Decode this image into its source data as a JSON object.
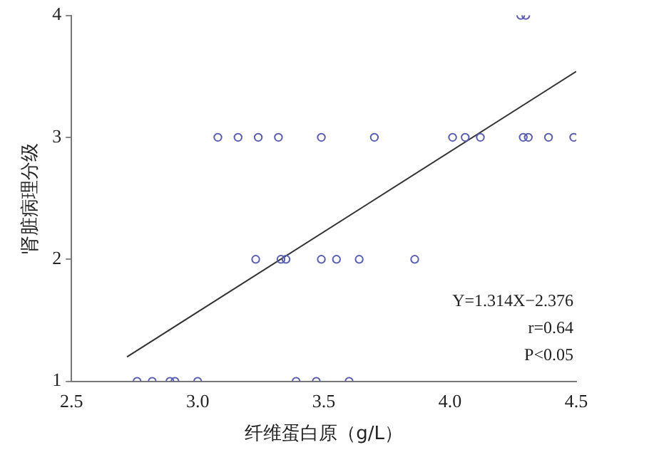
{
  "chart_data": {
    "type": "scatter",
    "xlabel": "纤维蛋白原（g/L）",
    "ylabel": "肾脏病理分级",
    "xlim": [
      2.5,
      4.5
    ],
    "xticks": [
      {
        "value": 2.5,
        "label": "2.5"
      },
      {
        "value": 3,
        "label": "3.0"
      },
      {
        "value": 3.5,
        "label": "3.5"
      },
      {
        "value": 4,
        "label": "4.0"
      },
      {
        "value": 4.5,
        "label": "4.5"
      }
    ],
    "ylim": [
      1,
      4
    ],
    "yticks": [
      1,
      2,
      3,
      4
    ],
    "grid": false,
    "legend": false,
    "marker": "circle",
    "series": [
      {
        "color": "#5a5fb0",
        "x": [
          3.08,
          3.16,
          3.24,
          3.32,
          3.49,
          3.7,
          4.01,
          4.06,
          4.12,
          4.29,
          4.31,
          4.39,
          4.49,
          4.28,
          4.3,
          3.23,
          3.33,
          3.35,
          3.49,
          3.55,
          3.64,
          3.86,
          2.76,
          2.82,
          2.89,
          2.91,
          3.0,
          3.39,
          3.47,
          3.6
        ],
        "values": [
          3,
          3,
          3,
          3,
          3,
          3,
          3,
          3,
          3,
          3,
          3,
          3,
          3,
          4,
          4,
          2,
          2,
          2,
          2,
          2,
          2,
          2,
          1,
          1,
          1,
          1,
          1,
          1,
          1,
          1
        ]
      },
      {
        "type": "line",
        "color": "#333333",
        "marker": "none",
        "x": [
          2.72,
          4.5
        ],
        "values": [
          1.2,
          3.54
        ]
      }
    ],
    "annotations": [
      "Y=1.314X−2.376",
      "r=0.64",
      "P<0.05"
    ]
  }
}
